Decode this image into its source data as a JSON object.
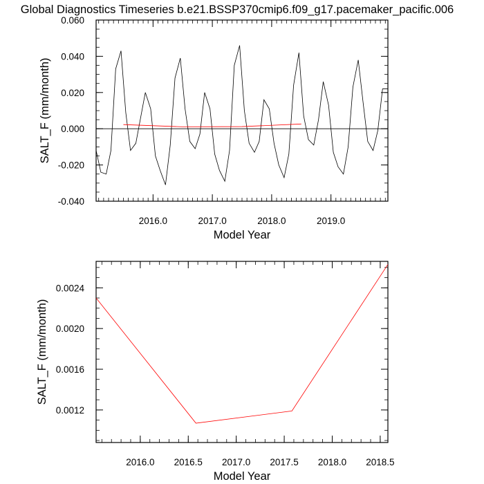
{
  "page_title": "Global Diagnostics Timeseries b.e21.BSSP370cmip6.f09_g17.pacemaker_pacific.006",
  "chart_data": [
    {
      "type": "line",
      "title": "",
      "xlabel": "Model Year",
      "ylabel": "SALT_F (mm/month)",
      "xlim": [
        2015.04,
        2019.96
      ],
      "ylim": [
        -0.04,
        0.06
      ],
      "xticks": [
        2016.0,
        2017.0,
        2018.0,
        2019.0
      ],
      "xtick_labels": [
        "2016.0",
        "2017.0",
        "2018.0",
        "2019.0"
      ],
      "yticks": [
        -0.04,
        -0.02,
        0.0,
        0.02,
        0.04,
        0.06
      ],
      "ytick_labels": [
        "-0.040",
        "-0.020",
        "0.000",
        "0.020",
        "0.040",
        "0.060"
      ],
      "reference_line_y": 0.0,
      "series": [
        {
          "color": "#000000",
          "x": [
            2015.04,
            2015.12,
            2015.21,
            2015.29,
            2015.37,
            2015.46,
            2015.54,
            2015.62,
            2015.71,
            2015.79,
            2015.87,
            2015.96,
            2016.04,
            2016.12,
            2016.21,
            2016.29,
            2016.37,
            2016.46,
            2016.54,
            2016.62,
            2016.71,
            2016.79,
            2016.87,
            2016.96,
            2017.04,
            2017.12,
            2017.21,
            2017.29,
            2017.37,
            2017.46,
            2017.54,
            2017.62,
            2017.71,
            2017.79,
            2017.87,
            2017.96,
            2018.04,
            2018.12,
            2018.21,
            2018.29,
            2018.37,
            2018.46,
            2018.54,
            2018.62,
            2018.71,
            2018.79,
            2018.87,
            2018.96,
            2019.04,
            2019.12,
            2019.21,
            2019.29,
            2019.37,
            2019.46,
            2019.54,
            2019.62,
            2019.71,
            2019.79,
            2019.87,
            2019.96
          ],
          "y": [
            -0.012,
            -0.024,
            -0.025,
            -0.012,
            0.033,
            0.043,
            0.009,
            -0.012,
            -0.008,
            0.006,
            0.02,
            0.011,
            -0.015,
            -0.023,
            -0.031,
            -0.009,
            0.028,
            0.039,
            0.011,
            -0.007,
            -0.011,
            -0.003,
            0.02,
            0.011,
            -0.014,
            -0.023,
            -0.029,
            -0.012,
            0.035,
            0.046,
            0.01,
            -0.008,
            -0.013,
            -0.007,
            0.016,
            0.011,
            -0.008,
            -0.02,
            -0.027,
            -0.014,
            0.024,
            0.042,
            0.007,
            -0.006,
            -0.009,
            0.005,
            0.026,
            0.013,
            -0.013,
            -0.021,
            -0.025,
            -0.01,
            0.023,
            0.038,
            0.015,
            -0.007,
            -0.012,
            -0.001,
            0.022,
            0.022
          ]
        },
        {
          "color": "#ff0000",
          "x": [
            2015.5,
            2016.5,
            2017.5,
            2018.5
          ],
          "y": [
            0.0023,
            0.00107,
            0.00119,
            0.00263
          ]
        }
      ]
    },
    {
      "type": "line",
      "title": "",
      "xlabel": "Model Year",
      "ylabel": "SALT_F (mm/month)",
      "xlim": [
        2015.54,
        2018.58
      ],
      "ylim": [
        0.00088,
        0.00266
      ],
      "xticks": [
        2016.0,
        2016.5,
        2017.0,
        2017.5,
        2018.0,
        2018.5
      ],
      "xtick_labels": [
        "2016.0",
        "2016.5",
        "2017.0",
        "2017.5",
        "2018.0",
        "2018.5"
      ],
      "yticks": [
        0.0012,
        0.0016,
        0.002,
        0.0024
      ],
      "ytick_labels": [
        "0.0012",
        "0.0016",
        "0.0020",
        "0.0024"
      ],
      "series": [
        {
          "color": "#ff0000",
          "x": [
            2015.54,
            2016.58,
            2017.58,
            2018.58
          ],
          "y": [
            0.0023,
            0.00107,
            0.00119,
            0.00263
          ]
        }
      ]
    }
  ]
}
